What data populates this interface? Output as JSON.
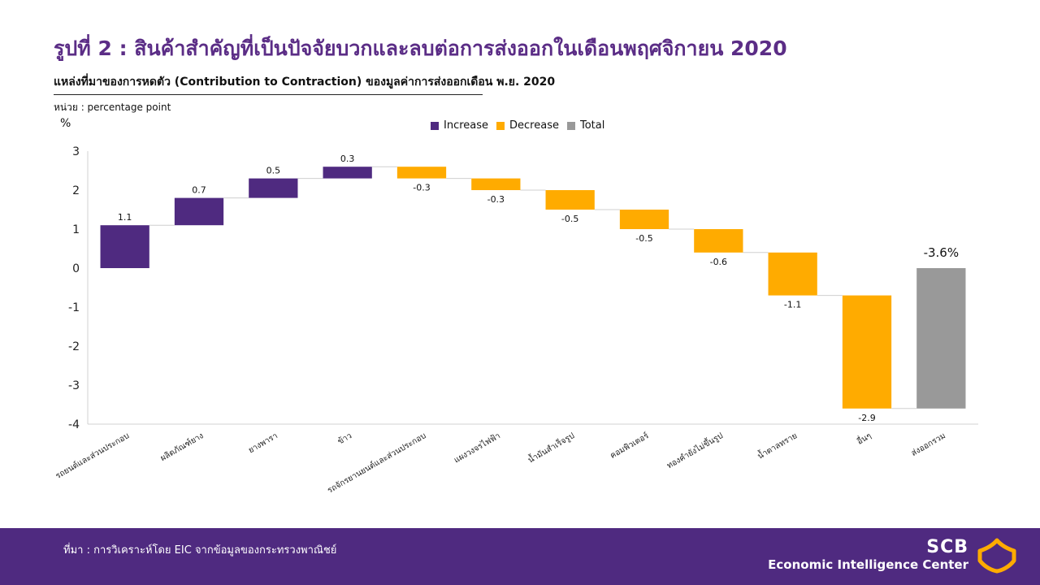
{
  "header": {
    "title": "รูปที่ 2 : สินค้าสำคัญที่เป็นปัจจัยบวกและลบต่อการส่งออกในเดือนพฤศจิกายน 2020",
    "subtitle": "แหล่งที่มาของการหดตัว (Contribution to Contraction) ของมูลค่าการส่งออกเดือน พ.ย. 2020",
    "unit": "หน่วย : percentage point"
  },
  "footer": {
    "source": "ที่มา : การวิเคราะห์โดย EIC จากข้อมูลของกระทรวงพาณิชย์",
    "logo_main": "SCB",
    "logo_sub": "Economic Intelligence Center"
  },
  "colors": {
    "increase": "#4f2a80",
    "decrease": "#ffab00",
    "total": "#999999",
    "brand": "#5b2d86"
  },
  "chart_data": {
    "type": "waterfall",
    "ylabel": "%",
    "ylim": [
      -4,
      3
    ],
    "yticks": [
      3,
      2,
      1,
      0,
      -1,
      -2,
      -3,
      -4
    ],
    "legend": [
      {
        "label": "Increase",
        "kind": "increase"
      },
      {
        "label": "Decrease",
        "kind": "decrease"
      },
      {
        "label": "Total",
        "kind": "total"
      }
    ],
    "legend_position": "top-center",
    "grid": false,
    "categories": [
      "รถยนต์และส่วนประกอบ",
      "ผลิตภัณฑ์ยาง",
      "ยางพารา",
      "ข้าว",
      "รถจักรยานยนต์และส่วนประกอบ",
      "แผงวงจรไฟฟ้า",
      "น้ำมันสำเร็จรูป",
      "คอมพิวเตอร์",
      "ทองคำยังไม่ขึ้นรูป",
      "น้ำตาลทราย",
      "อื่นๆ",
      "ส่งออกรวม"
    ],
    "values": [
      1.1,
      0.7,
      0.5,
      0.3,
      -0.3,
      -0.3,
      -0.5,
      -0.5,
      -0.6,
      -1.1,
      -2.9,
      -3.6
    ],
    "labels": [
      "1.1",
      "0.7",
      "0.5",
      "0.3",
      "-0.3",
      "-0.3",
      "-0.5",
      "-0.5",
      "-0.6",
      "-1.1",
      "-2.9",
      "-3.6%"
    ],
    "kinds": [
      "increase",
      "increase",
      "increase",
      "increase",
      "decrease",
      "decrease",
      "decrease",
      "decrease",
      "decrease",
      "decrease",
      "decrease",
      "total"
    ]
  }
}
